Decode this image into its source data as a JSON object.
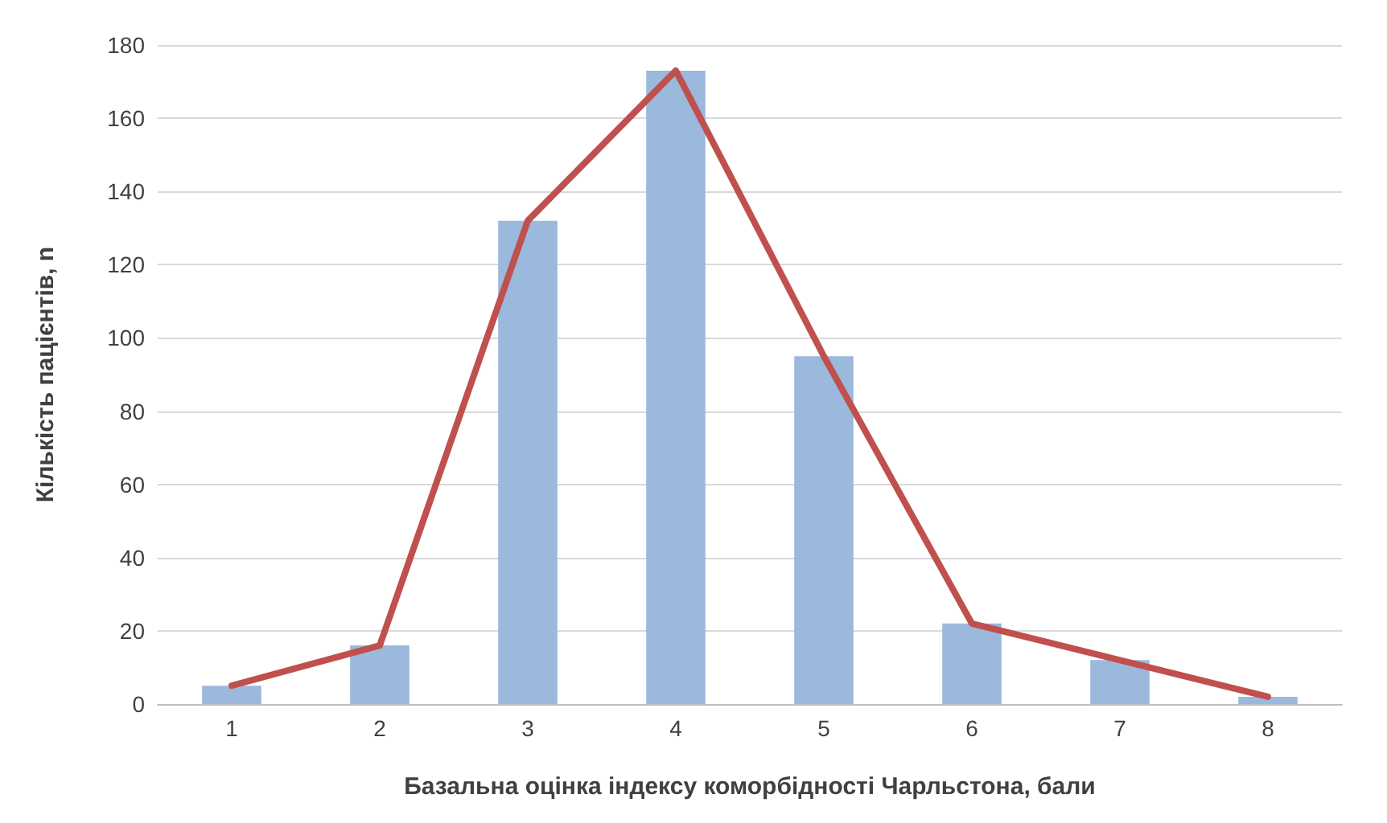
{
  "chart_data": {
    "type": "bar",
    "xlabel": "Базальна оцінка індексу коморбідності Чарльстона, бали",
    "ylabel": "Кількість пацієнтів, n",
    "categories": [
      "1",
      "2",
      "3",
      "4",
      "5",
      "6",
      "7",
      "8"
    ],
    "series": [
      {
        "color": "#9bb8dd",
        "values": [
          5,
          16,
          132,
          173,
          95,
          22,
          12,
          2
        ]
      },
      {
        "type": "line",
        "color": "#c0504d",
        "values": [
          5,
          16,
          132,
          173,
          95,
          22,
          12,
          2
        ]
      }
    ],
    "ylim": [
      0,
      180
    ],
    "yticks": [
      0,
      20,
      40,
      60,
      80,
      100,
      120,
      140,
      160,
      180
    ],
    "grid": "y",
    "marker": "none"
  }
}
